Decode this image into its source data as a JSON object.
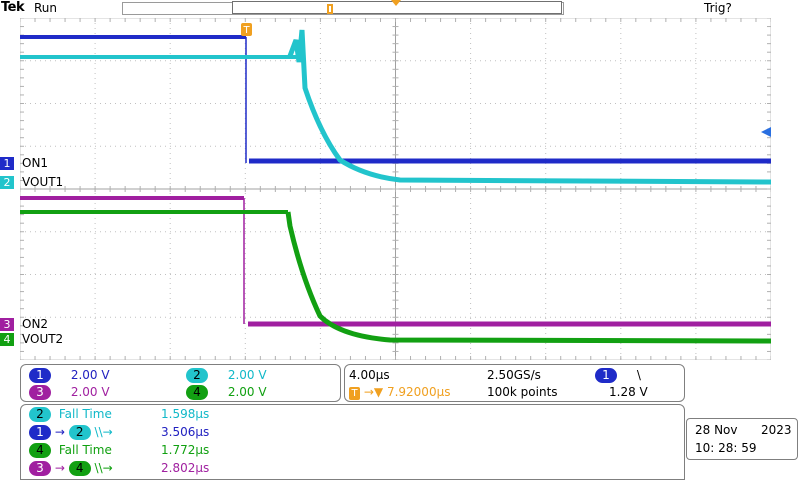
{
  "header": {
    "brand": "Tek",
    "acq_state": "Run",
    "trigger_status": "Trig?"
  },
  "colors": {
    "ch1": "#1f2bc8",
    "ch2": "#22c4cc",
    "ch3": "#a01fa0",
    "ch4": "#12a012",
    "trigger": "#f0a020",
    "text_blue": "#2020c0",
    "text_cyan": "#10b8c8",
    "text_magenta": "#a020a0",
    "text_green": "#10a010"
  },
  "channels": [
    {
      "num": "1",
      "name": "ON1"
    },
    {
      "num": "2",
      "name": "VOUT1"
    },
    {
      "num": "3",
      "name": "ON2"
    },
    {
      "num": "4",
      "name": "VOUT2"
    }
  ],
  "markers": {
    "trigger_tag": "T",
    "trigger_level_glyph": "◄"
  },
  "vertical_settings": {
    "ch1": {
      "num": "1",
      "scale": "2.00 V"
    },
    "ch2": {
      "num": "2",
      "scale": "2.00 V"
    },
    "ch3": {
      "num": "3",
      "scale": "2.00 V"
    },
    "ch4": {
      "num": "4",
      "scale": "2.00 V"
    }
  },
  "horizontal": {
    "timebase": "4.00µs",
    "sample_rate": "2.50GS/s",
    "record_length": "100k points",
    "trigger_delay": "7.92000µs",
    "trigger_source": "1",
    "trigger_slope": "\\",
    "trigger_level": "1.28 V"
  },
  "measurements": [
    {
      "type": "Fall Time",
      "source": "2",
      "value": "1.598µs"
    },
    {
      "type": "delay",
      "from": "1",
      "to": "2",
      "symbol": "\\\\→",
      "value": "3.506µs"
    },
    {
      "type": "Fall Time",
      "source": "4",
      "value": "1.772µs"
    },
    {
      "type": "delay",
      "from": "3",
      "to": "4",
      "symbol": "\\\\→",
      "value": "2.802µs"
    }
  ],
  "datetime": {
    "date_day": "28 Nov",
    "date_year": "2023",
    "time": "10: 28: 59"
  }
}
